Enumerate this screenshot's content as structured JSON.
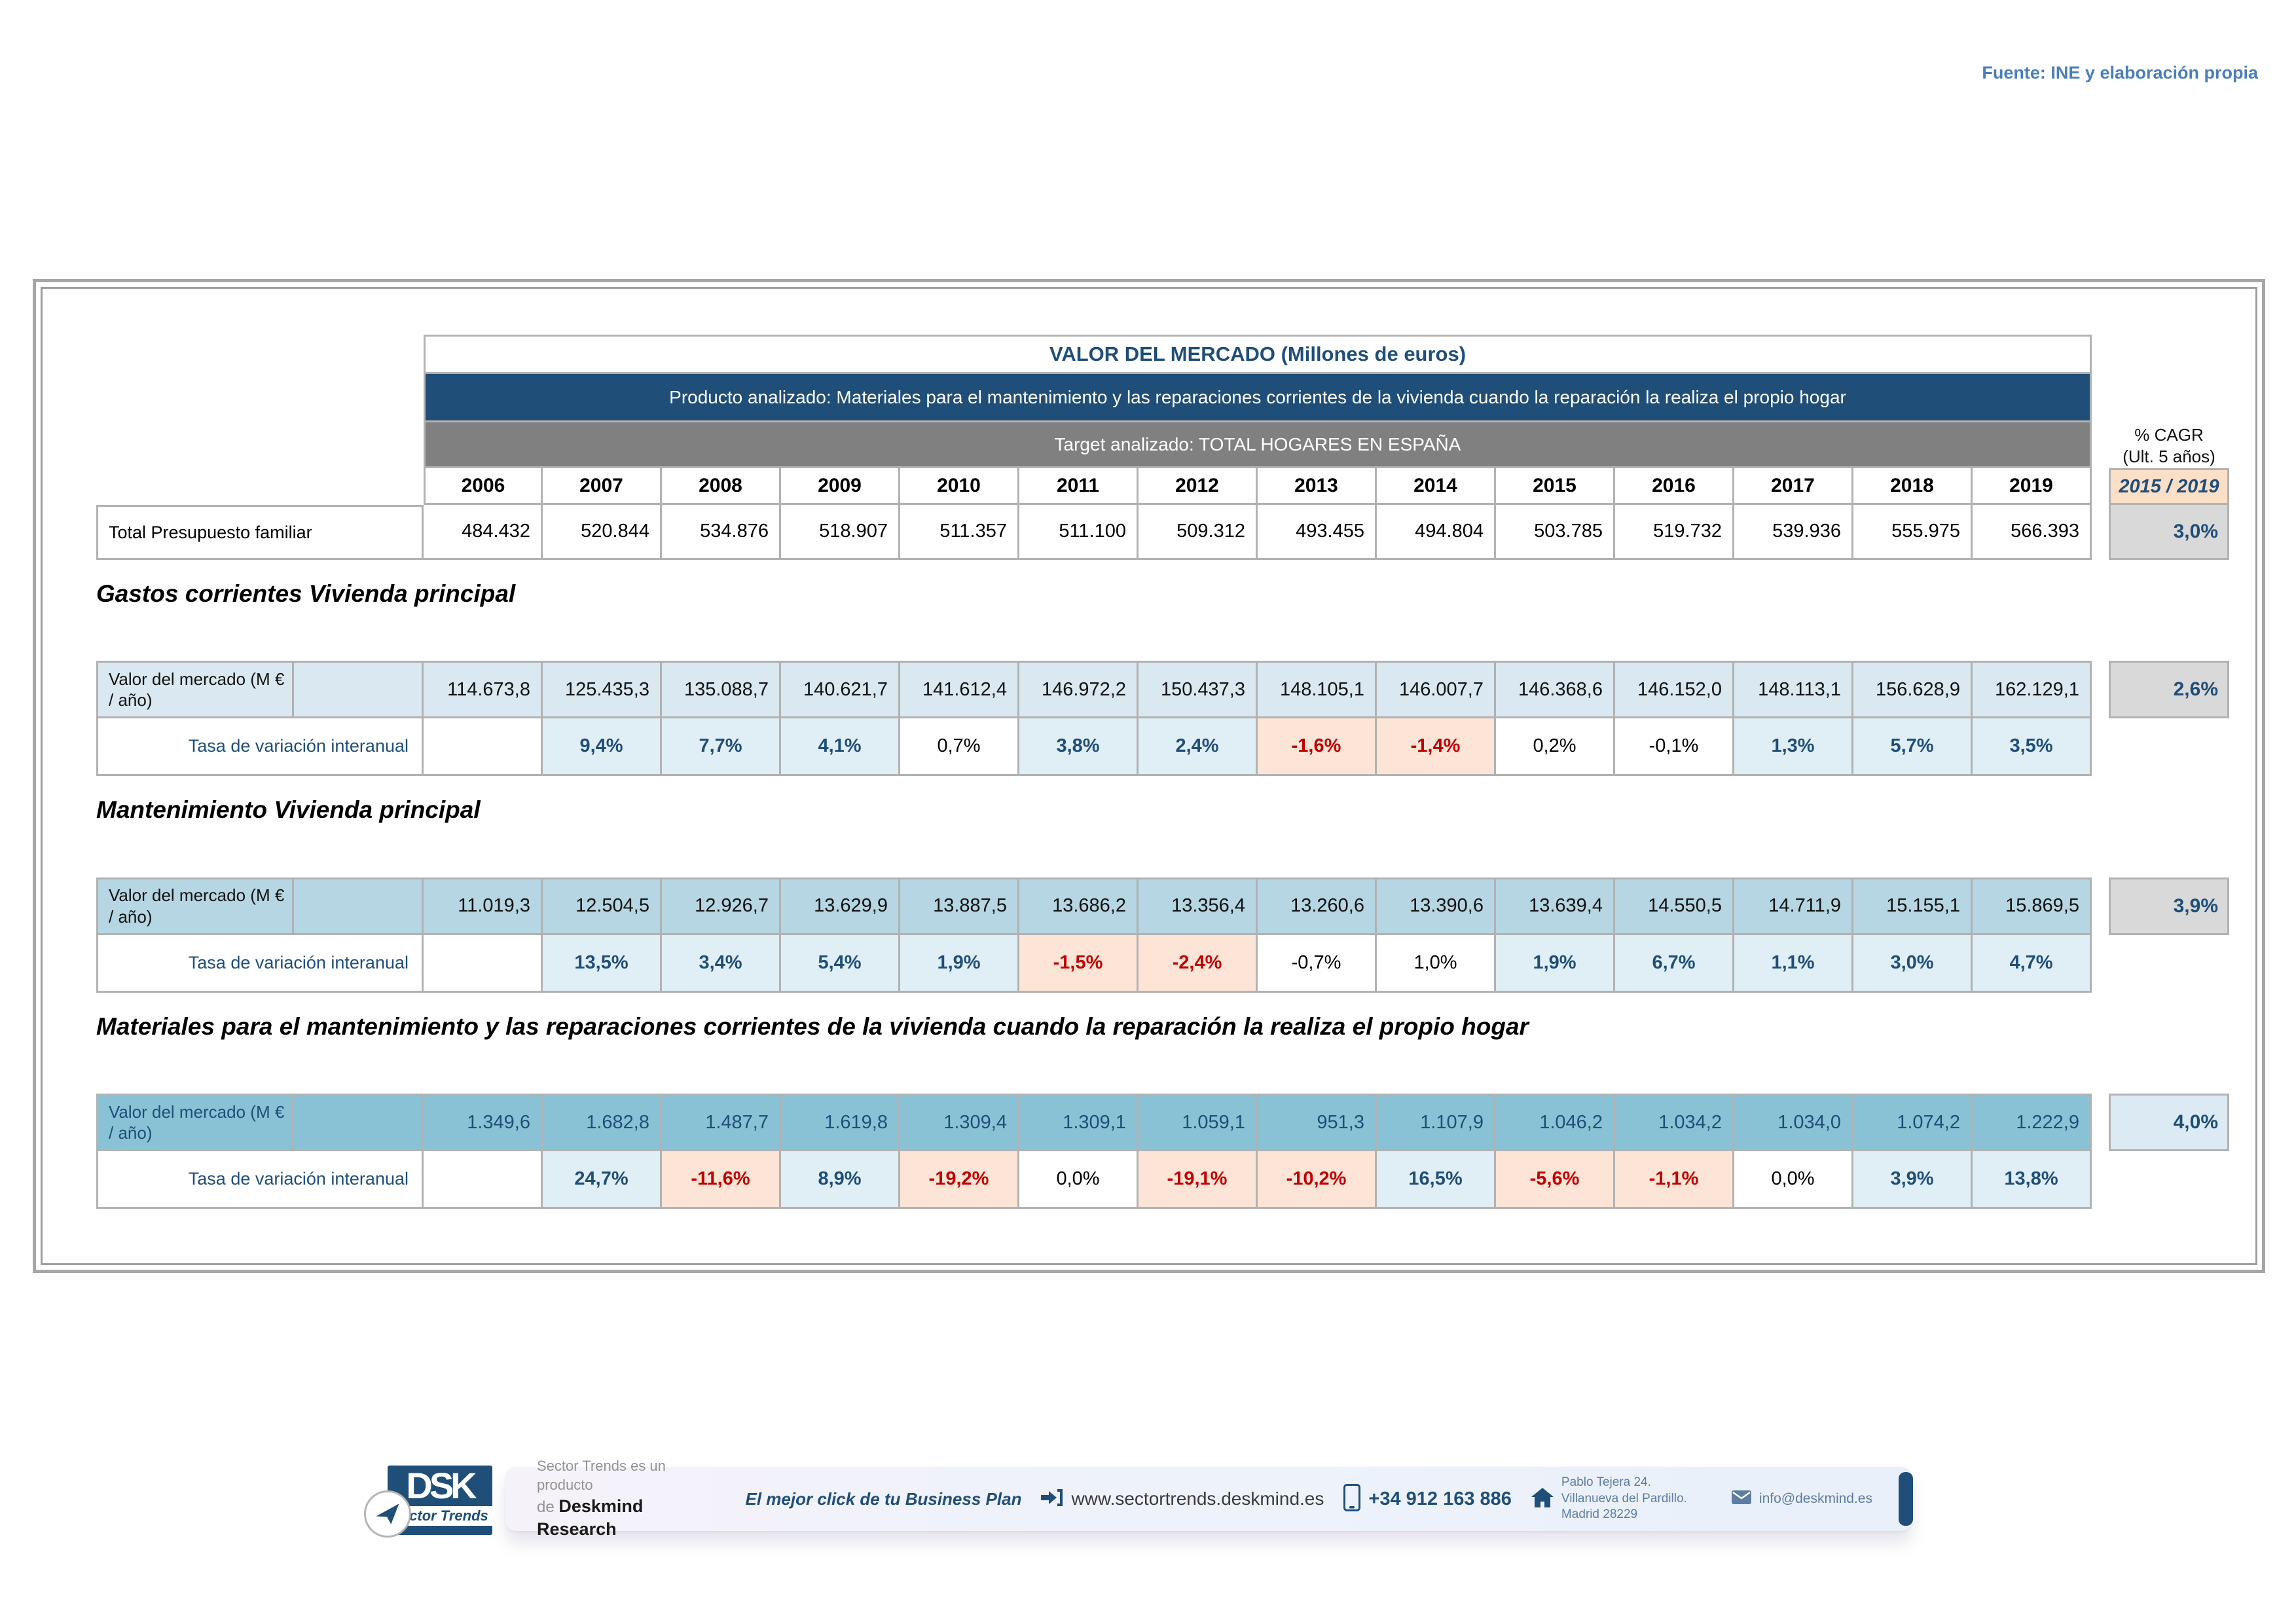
{
  "meta": {
    "source_note": "Fuente: INE y elaboración propia"
  },
  "colors": {
    "navy": "#1f4e79",
    "header_grey": "#808080",
    "border_grey": "#b2b2b2",
    "cagr_period_bg": "#fbdfc6",
    "negative_bg": "#fce4d6",
    "negative_text": "#c00000",
    "positive_bg": "#e0eef5",
    "section1_bg": "#d9e8f1",
    "section2_bg": "#b5d6e2",
    "section3_bg": "#8ac2d5",
    "cagr_grey_bg": "#d9d9d9",
    "cagr_blue_bg": "#dcebf3",
    "source_note_blue": "#4a7ebb"
  },
  "table": {
    "title": "VALOR DEL MERCADO (Millones de euros)",
    "product_row": "Producto analizado: Materiales para el mantenimiento y las reparaciones corrientes de la vivienda cuando la reparación la realiza el propio hogar",
    "target_row": "Target analizado: TOTAL HOGARES EN ESPAÑA",
    "years": [
      "2006",
      "2007",
      "2008",
      "2009",
      "2010",
      "2011",
      "2012",
      "2013",
      "2014",
      "2015",
      "2016",
      "2017",
      "2018",
      "2019"
    ],
    "cagr_header": {
      "line1": "% CAGR",
      "line2": "(Ult. 5 años)",
      "period": "2015 / 2019"
    },
    "total_row": {
      "label": "Total Presupuesto familiar",
      "values": [
        "484.432",
        "520.844",
        "534.876",
        "518.907",
        "511.357",
        "511.100",
        "509.312",
        "493.455",
        "494.804",
        "503.785",
        "519.732",
        "539.936",
        "555.975",
        "566.393"
      ],
      "cagr": "3,0%"
    }
  },
  "sections": [
    {
      "heading": "Gastos corrientes Vivienda principal",
      "value_label": "Valor del mercado (M € / año)",
      "values": [
        "114.673,8",
        "125.435,3",
        "135.088,7",
        "140.621,7",
        "141.612,4",
        "146.972,2",
        "150.437,3",
        "148.105,1",
        "146.007,7",
        "146.368,6",
        "146.152,0",
        "148.113,1",
        "156.628,9",
        "162.129,1"
      ],
      "cagr": "2,6%",
      "variation_label": "Tasa de variación interanual",
      "variations": [
        {
          "v": "9,4%",
          "s": "pos"
        },
        {
          "v": "7,7%",
          "s": "pos"
        },
        {
          "v": "4,1%",
          "s": "pos"
        },
        {
          "v": "0,7%",
          "s": "neu"
        },
        {
          "v": "3,8%",
          "s": "pos"
        },
        {
          "v": "2,4%",
          "s": "pos"
        },
        {
          "v": "-1,6%",
          "s": "neg"
        },
        {
          "v": "-1,4%",
          "s": "neg"
        },
        {
          "v": "0,2%",
          "s": "neu"
        },
        {
          "v": "-0,1%",
          "s": "neu"
        },
        {
          "v": "1,3%",
          "s": "pos"
        },
        {
          "v": "5,7%",
          "s": "pos"
        },
        {
          "v": "3,5%",
          "s": "pos"
        }
      ]
    },
    {
      "heading": "Mantenimiento Vivienda principal",
      "value_label": "Valor del mercado (M € / año)",
      "values": [
        "11.019,3",
        "12.504,5",
        "12.926,7",
        "13.629,9",
        "13.887,5",
        "13.686,2",
        "13.356,4",
        "13.260,6",
        "13.390,6",
        "13.639,4",
        "14.550,5",
        "14.711,9",
        "15.155,1",
        "15.869,5"
      ],
      "cagr": "3,9%",
      "variation_label": "Tasa de variación interanual",
      "variations": [
        {
          "v": "13,5%",
          "s": "pos"
        },
        {
          "v": "3,4%",
          "s": "pos"
        },
        {
          "v": "5,4%",
          "s": "pos"
        },
        {
          "v": "1,9%",
          "s": "pos"
        },
        {
          "v": "-1,5%",
          "s": "neg"
        },
        {
          "v": "-2,4%",
          "s": "neg"
        },
        {
          "v": "-0,7%",
          "s": "neu"
        },
        {
          "v": "1,0%",
          "s": "neu"
        },
        {
          "v": "1,9%",
          "s": "pos"
        },
        {
          "v": "6,7%",
          "s": "pos"
        },
        {
          "v": "1,1%",
          "s": "pos"
        },
        {
          "v": "3,0%",
          "s": "pos"
        },
        {
          "v": "4,7%",
          "s": "pos"
        }
      ]
    },
    {
      "heading": "Materiales para el mantenimiento y las reparaciones corrientes de la vivienda cuando la reparación la realiza el propio hogar",
      "value_label": "Valor del mercado (M € / año)",
      "values": [
        "1.349,6",
        "1.682,8",
        "1.487,7",
        "1.619,8",
        "1.309,4",
        "1.309,1",
        "1.059,1",
        "951,3",
        "1.107,9",
        "1.046,2",
        "1.034,2",
        "1.034,0",
        "1.074,2",
        "1.222,9"
      ],
      "cagr": "4,0%",
      "variation_label": "Tasa de variación interanual",
      "variations": [
        {
          "v": "24,7%",
          "s": "pos"
        },
        {
          "v": "-11,6%",
          "s": "neg"
        },
        {
          "v": "8,9%",
          "s": "pos"
        },
        {
          "v": "-19,2%",
          "s": "neg"
        },
        {
          "v": "0,0%",
          "s": "neu"
        },
        {
          "v": "-19,1%",
          "s": "neg"
        },
        {
          "v": "-10,2%",
          "s": "neg"
        },
        {
          "v": "16,5%",
          "s": "pos"
        },
        {
          "v": "-5,6%",
          "s": "neg"
        },
        {
          "v": "-1,1%",
          "s": "neg"
        },
        {
          "v": "0,0%",
          "s": "neu"
        },
        {
          "v": "3,9%",
          "s": "pos"
        },
        {
          "v": "13,8%",
          "s": "pos"
        }
      ]
    }
  ],
  "footer": {
    "logo": {
      "text": "DSK",
      "subtext": "Sector Trends"
    },
    "product_note_line1": "Sector Trends es un producto",
    "product_note_line2_prefix": "de ",
    "product_note_line2": "Deskmind Research",
    "tagline": "El mejor click de tu Business Plan",
    "website": "www.sectortrends.deskmind.es",
    "phone": "+34 912 163 886",
    "address_lines": [
      "Pablo Tejera 24.",
      "Villanueva del Pardillo.",
      "Madrid 28229"
    ],
    "email": "info@deskmind.es"
  }
}
